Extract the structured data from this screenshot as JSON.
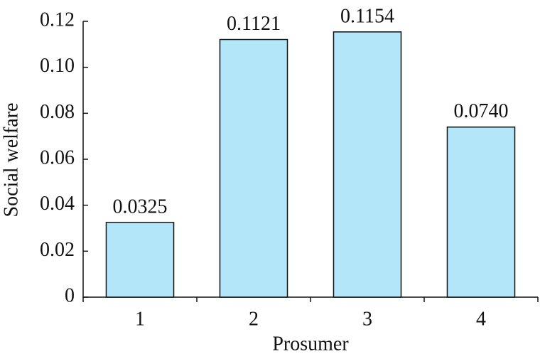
{
  "chart_data": {
    "type": "bar",
    "x_label": "Prosumer",
    "y_label": "Social welfare",
    "categories": [
      "1",
      "2",
      "3",
      "4"
    ],
    "values": [
      0.0325,
      0.1121,
      0.1154,
      0.074
    ],
    "value_labels": [
      "0.0325",
      "0.1121",
      "0.1154",
      "0.0740"
    ],
    "color": "#b3e6f9",
    "ylim": [
      0,
      0.12
    ],
    "yticks": [
      0,
      0.02,
      0.04,
      0.06,
      0.08,
      {
        "value": 0.1,
        "label": "0.10"
      },
      0.12
    ],
    "grid": false
  }
}
